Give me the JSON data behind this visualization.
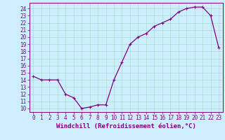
{
  "hours": [
    0,
    1,
    2,
    3,
    4,
    5,
    6,
    7,
    8,
    9,
    10,
    11,
    12,
    13,
    14,
    15,
    16,
    17,
    18,
    19,
    20,
    21,
    22,
    23
  ],
  "temps": [
    14.5,
    14.0,
    14.0,
    14.0,
    12.0,
    11.5,
    10.0,
    10.2,
    10.5,
    10.5,
    14.0,
    16.5,
    19.0,
    20.0,
    20.5,
    21.5,
    22.0,
    22.5,
    23.5,
    24.0,
    24.2,
    24.2,
    23.0,
    18.5
  ],
  "line_color": "#800080",
  "bg_color": "#cceeff",
  "grid_color": "#aaddcc",
  "xlabel": "Windchill (Refroidissement éolien,°C)",
  "ylabel_ticks": [
    10,
    11,
    12,
    13,
    14,
    15,
    16,
    17,
    18,
    19,
    20,
    21,
    22,
    23,
    24
  ],
  "ylim": [
    9.5,
    24.8
  ],
  "xlim": [
    -0.5,
    23.5
  ],
  "marker": "+",
  "markersize": 3,
  "linewidth": 0.9,
  "xlabel_fontsize": 6.5,
  "tick_fontsize": 5.5
}
